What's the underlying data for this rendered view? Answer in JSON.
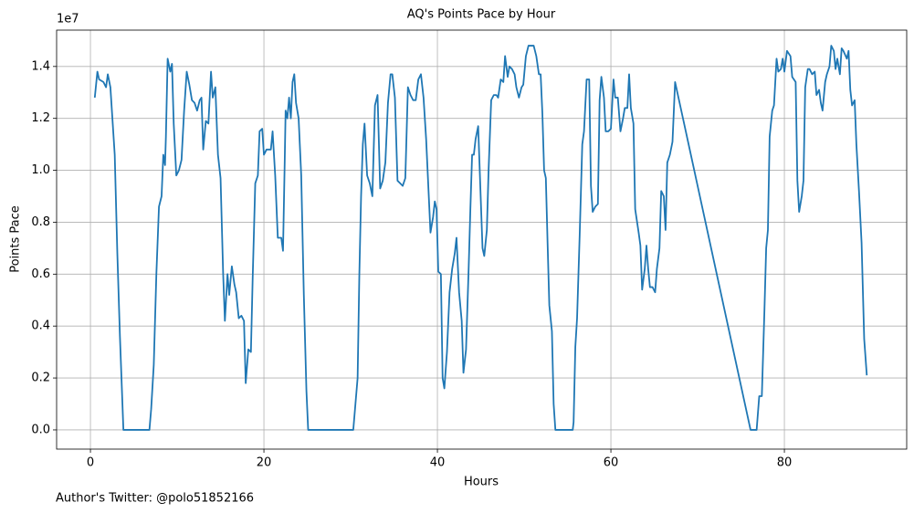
{
  "chart_data": {
    "type": "line",
    "title": "AQ's Points Pace by Hour",
    "x_label": "Hours",
    "y_label": "Points Pace",
    "y_offset_label": "1e7",
    "footnote": "Author's Twitter: @polo51852166",
    "color": "#1f77b4",
    "grid": true,
    "xlim": [
      -3.9,
      94.1
    ],
    "xticks": [
      0,
      20,
      40,
      60,
      80
    ],
    "ylim": [
      -0.074,
      1.54
    ],
    "yticks": [
      {
        "value": 0,
        "label": "0.0"
      },
      0.2,
      0.4,
      0.6,
      0.8,
      {
        "value": 1,
        "label": "1.0"
      },
      1.2,
      1.4
    ],
    "x": [
      0.5,
      0.8,
      1.0,
      1.5,
      1.8,
      2.0,
      2.3,
      2.8,
      3.1,
      3.4,
      3.8,
      5,
      6.8,
      7.0,
      7.3,
      7.6,
      7.9,
      8.2,
      8.4,
      8.6,
      8.7,
      8.9,
      9.2,
      9.4,
      9.6,
      9.9,
      10.2,
      10.5,
      10.8,
      11.1,
      11.4,
      11.7,
      12.0,
      12.3,
      12.6,
      12.8,
      13.0,
      13.3,
      13.6,
      13.9,
      14.1,
      14.4,
      14.7,
      15.0,
      15.3,
      15.5,
      15.8,
      16.0,
      16.3,
      16.6,
      16.8,
      17.1,
      17.4,
      17.7,
      17.9,
      18.2,
      18.5,
      18.7,
      19.0,
      19.3,
      19.5,
      19.8,
      20.0,
      20.3,
      20.8,
      21.0,
      21.3,
      21.6,
      21.8,
      22.0,
      22.2,
      22.4,
      22.5,
      22.7,
      22.9,
      23.1,
      23.3,
      23.5,
      23.7,
      24.0,
      24.3,
      24.6,
      24.9,
      25.1,
      30.3,
      30.5,
      30.8,
      31.0,
      31.2,
      31.4,
      31.6,
      31.9,
      32.2,
      32.5,
      32.8,
      33.1,
      33.4,
      33.7,
      34.0,
      34.3,
      34.6,
      34.8,
      35.1,
      35.4,
      35.7,
      36.0,
      36.3,
      36.6,
      36.9,
      37.2,
      37.5,
      37.8,
      38.1,
      38.4,
      38.7,
      39.2,
      39.5,
      39.7,
      39.9,
      40.1,
      40.4,
      40.6,
      40.8,
      41.1,
      41.4,
      41.7,
      42.0,
      42.2,
      42.5,
      42.8,
      43.0,
      43.3,
      43.6,
      43.8,
      44.0,
      44.2,
      44.4,
      44.7,
      44.9,
      45.2,
      45.4,
      45.7,
      45.9,
      46.2,
      46.5,
      46.8,
      47.0,
      47.3,
      47.6,
      47.8,
      48.1,
      48.3,
      48.6,
      48.9,
      49.1,
      49.4,
      49.7,
      49.9,
      50.2,
      50.5,
      51.1,
      51.4,
      51.7,
      51.9,
      52.1,
      52.3,
      52.5,
      52.7,
      52.9,
      53.2,
      53.4,
      53.6,
      55.6,
      55.7,
      55.9,
      56.1,
      56.4,
      56.7,
      56.9,
      57.2,
      57.5,
      57.7,
      57.9,
      58.2,
      58.5,
      58.7,
      58.9,
      59.2,
      59.4,
      59.7,
      60.0,
      60.3,
      60.5,
      60.8,
      61.1,
      61.4,
      61.6,
      61.9,
      62.1,
      62.3,
      62.6,
      62.8,
      63.2,
      63.4,
      63.6,
      63.9,
      64.1,
      64.3,
      64.5,
      64.8,
      65.1,
      65.3,
      65.6,
      65.8,
      66.1,
      66.3,
      66.5,
      66.8,
      67.1,
      67.4,
      76.1,
      76.8,
      77.1,
      77.4,
      77.7,
      77.9,
      78.1,
      78.3,
      78.6,
      78.8,
      79.1,
      79.3,
      79.6,
      79.8,
      80.0,
      80.3,
      80.5,
      80.7,
      80.9,
      81.3,
      81.5,
      81.7,
      82.0,
      82.2,
      82.4,
      82.7,
      82.9,
      83.2,
      83.5,
      83.7,
      84.0,
      84.2,
      84.4,
      84.7,
      84.9,
      85.2,
      85.4,
      85.7,
      85.9,
      86.1,
      86.4,
      86.6,
      86.8,
      87.2,
      87.4,
      87.6,
      87.8,
      88.1,
      88.3,
      88.6,
      88.9,
      89.2,
      89.5
    ],
    "values": [
      1.28,
      1.38,
      1.35,
      1.34,
      1.32,
      1.37,
      1.32,
      1.06,
      0.68,
      0.36,
      0,
      0,
      0,
      0.08,
      0.25,
      0.6,
      0.86,
      0.9,
      1.06,
      1.02,
      1.13,
      1.43,
      1.38,
      1.41,
      1.18,
      0.98,
      1.0,
      1.04,
      1.23,
      1.38,
      1.33,
      1.27,
      1.26,
      1.23,
      1.27,
      1.28,
      1.08,
      1.19,
      1.18,
      1.38,
      1.28,
      1.32,
      1.06,
      0.97,
      0.6,
      0.42,
      0.6,
      0.52,
      0.63,
      0.56,
      0.53,
      0.43,
      0.44,
      0.42,
      0.18,
      0.31,
      0.3,
      0.58,
      0.95,
      0.98,
      1.15,
      1.16,
      1.06,
      1.08,
      1.08,
      1.15,
      0.98,
      0.74,
      0.74,
      0.74,
      0.69,
      1.04,
      1.23,
      1.2,
      1.28,
      1.2,
      1.34,
      1.37,
      1.26,
      1.2,
      0.98,
      0.52,
      0.15,
      0,
      0,
      0.08,
      0.2,
      0.6,
      0.9,
      1.1,
      1.18,
      0.98,
      0.95,
      0.9,
      1.25,
      1.29,
      0.93,
      0.96,
      1.03,
      1.26,
      1.37,
      1.37,
      1.28,
      0.96,
      0.95,
      0.94,
      0.97,
      1.32,
      1.29,
      1.27,
      1.27,
      1.35,
      1.37,
      1.28,
      1.12,
      0.76,
      0.82,
      0.88,
      0.85,
      0.61,
      0.6,
      0.2,
      0.16,
      0.3,
      0.53,
      0.62,
      0.68,
      0.74,
      0.53,
      0.42,
      0.22,
      0.31,
      0.62,
      0.85,
      1.06,
      1.06,
      1.12,
      1.17,
      0.98,
      0.7,
      0.67,
      0.77,
      1.0,
      1.27,
      1.29,
      1.29,
      1.28,
      1.35,
      1.34,
      1.44,
      1.36,
      1.4,
      1.39,
      1.37,
      1.32,
      1.28,
      1.32,
      1.33,
      1.44,
      1.48,
      1.48,
      1.44,
      1.37,
      1.37,
      1.22,
      1.0,
      0.97,
      0.72,
      0.48,
      0.38,
      0.1,
      0,
      0,
      0.03,
      0.32,
      0.43,
      0.75,
      1.1,
      1.15,
      1.35,
      1.35,
      0.94,
      0.84,
      0.86,
      0.87,
      1.27,
      1.36,
      1.28,
      1.15,
      1.15,
      1.16,
      1.35,
      1.28,
      1.28,
      1.15,
      1.2,
      1.24,
      1.24,
      1.37,
      1.24,
      1.18,
      0.85,
      0.76,
      0.71,
      0.54,
      0.62,
      0.71,
      0.62,
      0.55,
      0.55,
      0.53,
      0.62,
      0.7,
      0.92,
      0.9,
      0.77,
      1.03,
      1.06,
      1.11,
      1.34,
      0,
      0,
      0.13,
      0.13,
      0.46,
      0.7,
      0.77,
      1.13,
      1.23,
      1.25,
      1.43,
      1.38,
      1.39,
      1.43,
      1.38,
      1.46,
      1.45,
      1.44,
      1.36,
      1.34,
      0.96,
      0.84,
      0.9,
      0.96,
      1.32,
      1.39,
      1.39,
      1.37,
      1.38,
      1.29,
      1.31,
      1.26,
      1.23,
      1.34,
      1.37,
      1.4,
      1.48,
      1.46,
      1.39,
      1.43,
      1.37,
      1.47,
      1.46,
      1.43,
      1.46,
      1.31,
      1.25,
      1.27,
      1.1,
      0.92,
      0.72,
      0.35,
      0.21
    ]
  }
}
